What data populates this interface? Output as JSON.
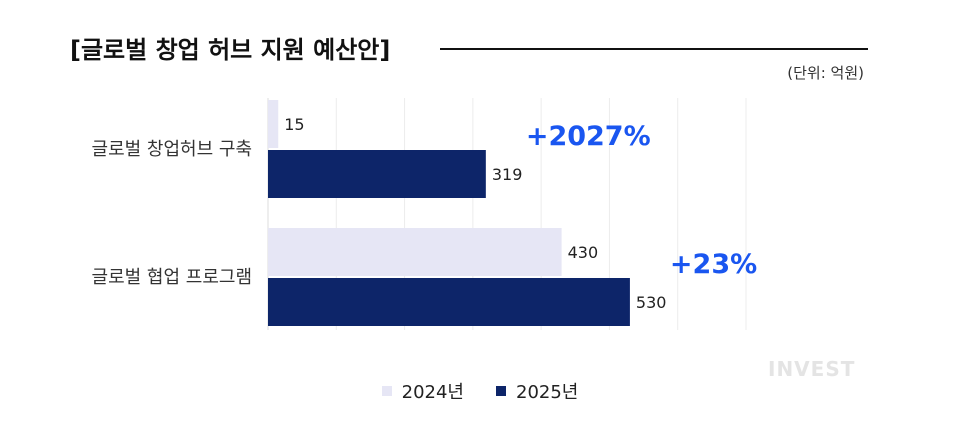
{
  "title": "[글로벌 창업 허브 지원 예산안]",
  "unit": "(단위: 억원)",
  "watermark": "INVEST",
  "colors": {
    "series_2024": "#e6e6f5",
    "series_2025": "#0d2569",
    "change": "#1a56f0",
    "grid": "#ececec"
  },
  "legend": [
    {
      "label": "2024년",
      "color": "#e6e6f5"
    },
    {
      "label": "2025년",
      "color": "#0d2569"
    }
  ],
  "chart_data": {
    "type": "bar",
    "orientation": "horizontal",
    "title": "[글로벌 창업 허브 지원 예산안]",
    "unit": "(단위: 억원)",
    "categories": [
      "글로벌 창업허브 구축",
      "글로벌 협업 프로그램"
    ],
    "series": [
      {
        "name": "2024년",
        "values": [
          15,
          430
        ]
      },
      {
        "name": "2025년",
        "values": [
          319,
          530
        ]
      }
    ],
    "changes": [
      "+2027%",
      "+23%"
    ],
    "xlim": [
      0,
      700
    ],
    "grid": true,
    "legend_position": "bottom"
  }
}
